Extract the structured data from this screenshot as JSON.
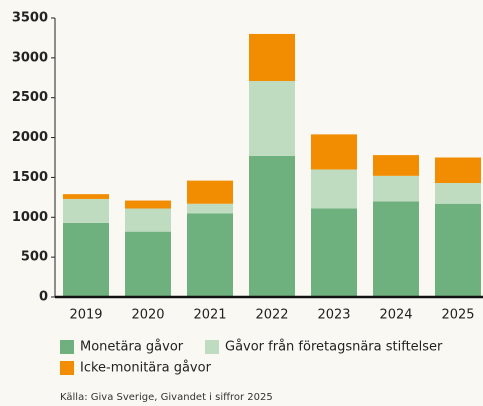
{
  "chart_data": {
    "type": "stacked_bar",
    "categories": [
      "2019",
      "2020",
      "2021",
      "2022",
      "2023",
      "2024",
      "2025"
    ],
    "series": [
      {
        "name": "Monetära gåvor",
        "color": "#6fb07f",
        "values": [
          930,
          820,
          1050,
          1770,
          1110,
          1200,
          1170
        ]
      },
      {
        "name": "Gåvor från företagsnära stiftelser",
        "color": "#bfdcc0",
        "values": [
          300,
          290,
          120,
          940,
          490,
          320,
          260
        ]
      },
      {
        "name": "Icke-monitära gåvor",
        "color": "#f28c00",
        "values": [
          60,
          100,
          290,
          590,
          440,
          260,
          320
        ]
      }
    ],
    "ylim": [
      0,
      3500
    ],
    "yticks": [
      0,
      500,
      1000,
      1500,
      2000,
      2500,
      3000,
      3500
    ],
    "source": "Källa: Giva Sverige, Givandet i siffror 2025"
  }
}
